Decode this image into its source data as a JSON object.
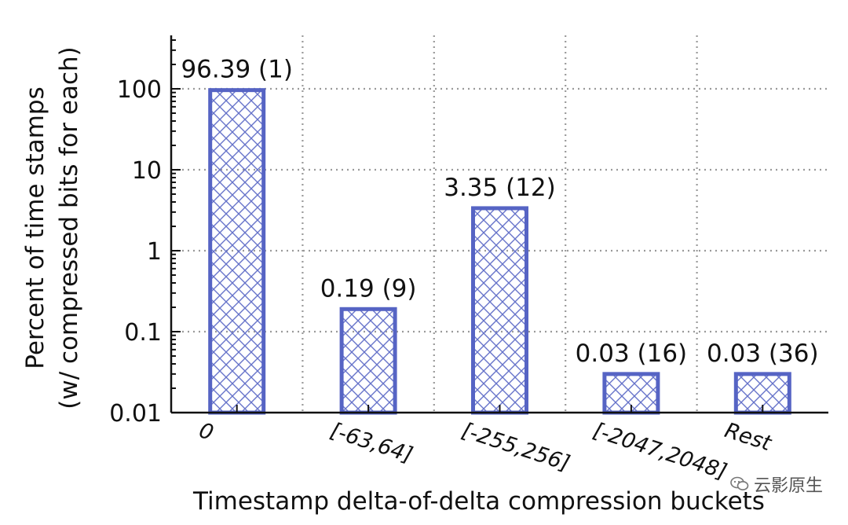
{
  "chart_data": {
    "type": "bar",
    "title": "",
    "xlabel": "Timestamp delta-of-delta compression buckets",
    "ylabel_line1": "Percent of time stamps",
    "ylabel_line2": "(w/ compressed bits for each)",
    "yscale": "log",
    "ylim": [
      0.01,
      400
    ],
    "grid": true,
    "categories": [
      "0",
      "[-63,64]",
      "[-255,256]",
      "[-2047,2048]",
      "Rest"
    ],
    "values": [
      96.39,
      0.19,
      3.35,
      0.03,
      0.03
    ],
    "data_labels": [
      "96.39 (1)",
      "0.19 (9)",
      "3.35 (12)",
      "0.03 (16)",
      "0.03 (36)"
    ],
    "y_ticks": [
      0.01,
      0.1,
      1,
      10,
      100
    ],
    "y_tick_labels": [
      "0.01",
      "0.1",
      "1",
      "10",
      "100"
    ],
    "colors": {
      "bar_stroke": "#5664c4",
      "bar_hatch": "#6673c9",
      "grid": "#9a9a9a",
      "axis": "#111111"
    }
  },
  "watermark": {
    "text": "云影原生",
    "icon": "wechat-icon"
  }
}
